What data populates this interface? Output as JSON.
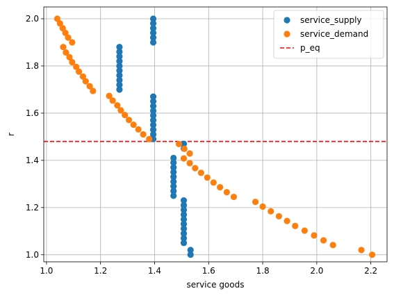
{
  "chart_data": {
    "type": "scatter",
    "title": "",
    "xlabel": "service goods",
    "ylabel": "r",
    "xlim": [
      0.99,
      2.26
    ],
    "ylim": [
      0.97,
      2.05
    ],
    "x_ticks": [
      1.0,
      1.2,
      1.4,
      1.6,
      1.8,
      2.0,
      2.2
    ],
    "x_tick_labels": [
      "1.0",
      "1.2",
      "1.4",
      "1.6",
      "1.8",
      "2.0",
      "2.2"
    ],
    "y_ticks": [
      1.0,
      1.2,
      1.4,
      1.6,
      1.8,
      2.0
    ],
    "y_tick_labels": [
      "1.0",
      "1.2",
      "1.4",
      "1.6",
      "1.8",
      "2.0"
    ],
    "grid": true,
    "legend_position": "top-right",
    "series": [
      {
        "name": "service_supply",
        "color": "#1f77b4",
        "points": [
          [
            1.395,
            2.0
          ],
          [
            1.395,
            1.98
          ],
          [
            1.395,
            1.96
          ],
          [
            1.395,
            1.94
          ],
          [
            1.395,
            1.92
          ],
          [
            1.395,
            1.9
          ],
          [
            1.27,
            1.88
          ],
          [
            1.27,
            1.86
          ],
          [
            1.27,
            1.84
          ],
          [
            1.27,
            1.82
          ],
          [
            1.27,
            1.8
          ],
          [
            1.27,
            1.78
          ],
          [
            1.27,
            1.76
          ],
          [
            1.27,
            1.74
          ],
          [
            1.27,
            1.72
          ],
          [
            1.27,
            1.7
          ],
          [
            1.395,
            1.67
          ],
          [
            1.395,
            1.65
          ],
          [
            1.395,
            1.63
          ],
          [
            1.395,
            1.61
          ],
          [
            1.395,
            1.59
          ],
          [
            1.395,
            1.57
          ],
          [
            1.395,
            1.55
          ],
          [
            1.395,
            1.53
          ],
          [
            1.395,
            1.51
          ],
          [
            1.395,
            1.49
          ],
          [
            1.508,
            1.47
          ],
          [
            1.508,
            1.45
          ],
          [
            1.47,
            1.41
          ],
          [
            1.47,
            1.39
          ],
          [
            1.47,
            1.37
          ],
          [
            1.47,
            1.35
          ],
          [
            1.47,
            1.33
          ],
          [
            1.47,
            1.31
          ],
          [
            1.47,
            1.29
          ],
          [
            1.47,
            1.27
          ],
          [
            1.47,
            1.25
          ],
          [
            1.508,
            1.23
          ],
          [
            1.508,
            1.21
          ],
          [
            1.508,
            1.19
          ],
          [
            1.508,
            1.17
          ],
          [
            1.508,
            1.15
          ],
          [
            1.508,
            1.13
          ],
          [
            1.508,
            1.11
          ],
          [
            1.508,
            1.09
          ],
          [
            1.508,
            1.07
          ],
          [
            1.508,
            1.05
          ],
          [
            1.533,
            1.02
          ],
          [
            1.533,
            1.0
          ]
        ]
      },
      {
        "name": "service_demand",
        "color": "#ff7f0e",
        "points": [
          [
            1.04,
            2.0
          ],
          [
            1.05,
            1.98
          ],
          [
            1.06,
            1.96
          ],
          [
            1.07,
            1.94
          ],
          [
            1.08,
            1.92
          ],
          [
            1.095,
            1.9
          ],
          [
            1.062,
            1.88
          ],
          [
            1.072,
            1.857
          ],
          [
            1.085,
            1.837
          ],
          [
            1.095,
            1.816
          ],
          [
            1.11,
            1.796
          ],
          [
            1.12,
            1.776
          ],
          [
            1.135,
            1.755
          ],
          [
            1.145,
            1.735
          ],
          [
            1.16,
            1.714
          ],
          [
            1.172,
            1.694
          ],
          [
            1.232,
            1.673
          ],
          [
            1.245,
            1.653
          ],
          [
            1.262,
            1.633
          ],
          [
            1.275,
            1.612
          ],
          [
            1.29,
            1.592
          ],
          [
            1.305,
            1.571
          ],
          [
            1.322,
            1.551
          ],
          [
            1.34,
            1.531
          ],
          [
            1.358,
            1.51
          ],
          [
            1.38,
            1.49
          ],
          [
            1.49,
            1.469
          ],
          [
            1.51,
            1.449
          ],
          [
            1.53,
            1.429
          ],
          [
            1.508,
            1.408
          ],
          [
            1.53,
            1.388
          ],
          [
            1.55,
            1.367
          ],
          [
            1.572,
            1.347
          ],
          [
            1.595,
            1.327
          ],
          [
            1.618,
            1.306
          ],
          [
            1.642,
            1.286
          ],
          [
            1.667,
            1.265
          ],
          [
            1.693,
            1.245
          ],
          [
            1.773,
            1.224
          ],
          [
            1.8,
            1.204
          ],
          [
            1.83,
            1.184
          ],
          [
            1.86,
            1.163
          ],
          [
            1.89,
            1.143
          ],
          [
            1.92,
            1.122
          ],
          [
            1.955,
            1.102
          ],
          [
            1.99,
            1.082
          ],
          [
            2.025,
            1.061
          ],
          [
            2.06,
            1.041
          ],
          [
            2.165,
            1.02
          ],
          [
            2.205,
            1.0
          ]
        ]
      }
    ],
    "reference_lines": [
      {
        "name": "p_eq",
        "orientation": "horizontal",
        "y": 1.48,
        "color": "#ff0000",
        "style": "dashed"
      }
    ]
  }
}
